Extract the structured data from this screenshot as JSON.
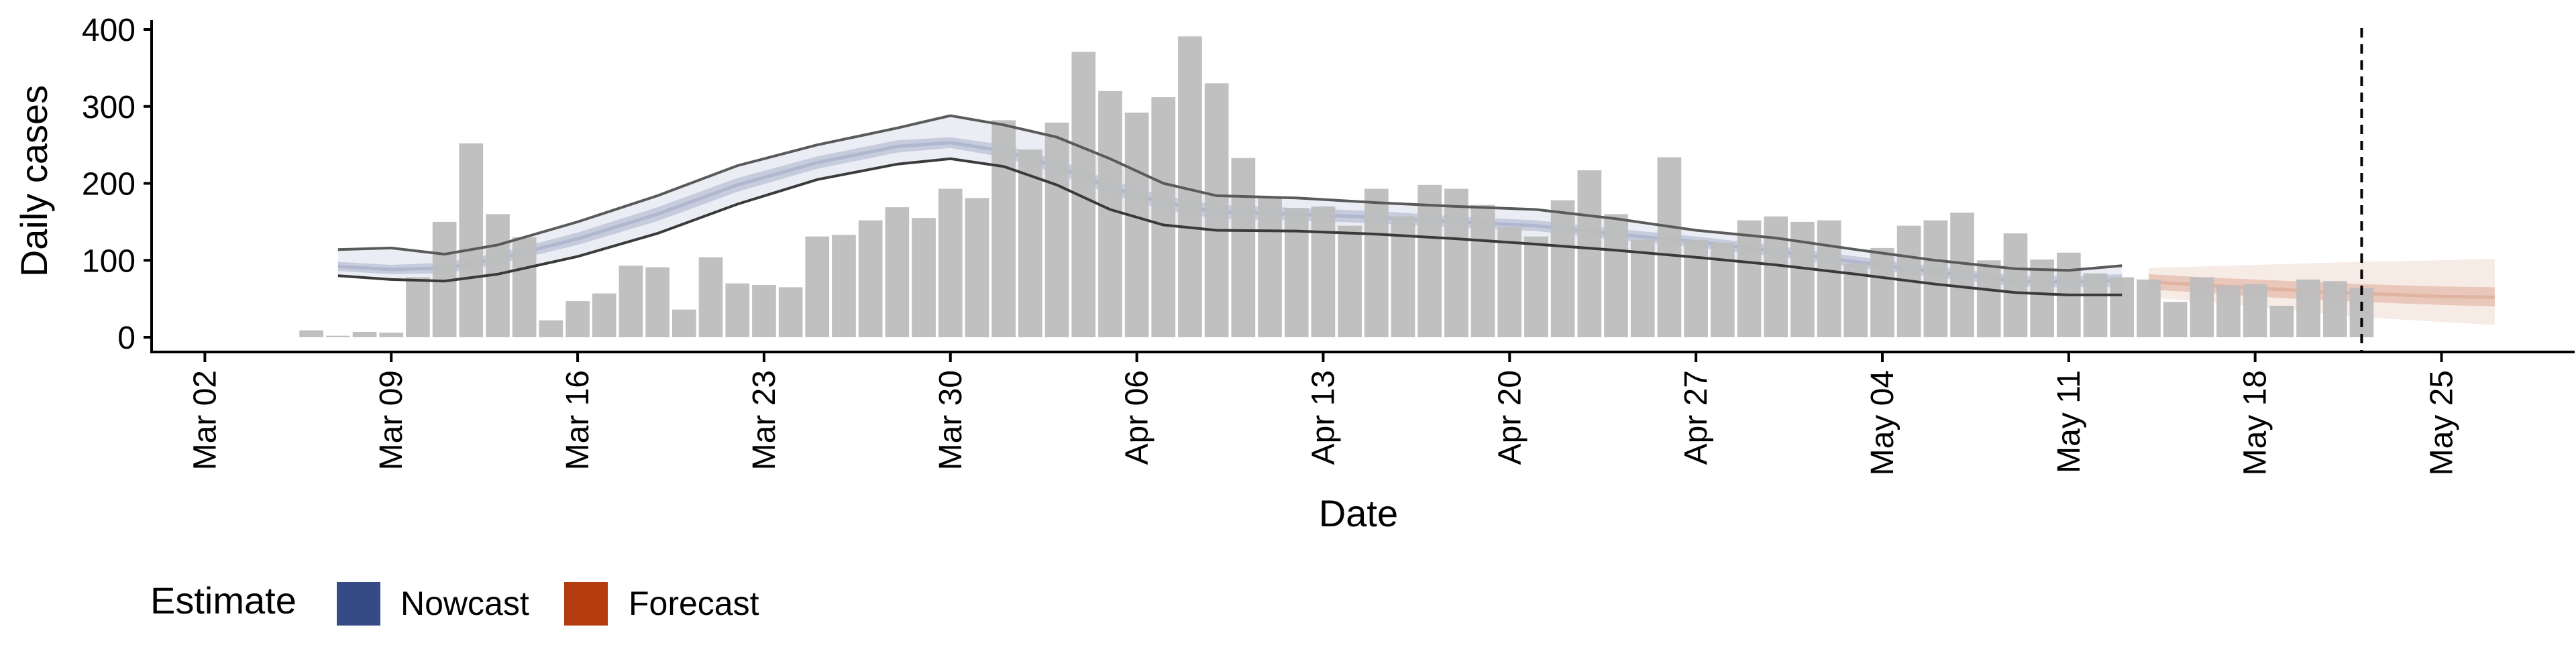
{
  "chart_data": {
    "type": "bar",
    "xlabel": "Date",
    "ylabel": "Daily cases",
    "ylim": [
      0,
      400
    ],
    "yticks": [
      0,
      100,
      200,
      300,
      400
    ],
    "x_axis": {
      "type": "date",
      "range": [
        "2020-02-29",
        "2020-05-30"
      ],
      "ticks": [
        {
          "date": "2020-03-02",
          "label": "Mar 02"
        },
        {
          "date": "2020-03-09",
          "label": "Mar 09"
        },
        {
          "date": "2020-03-16",
          "label": "Mar 16"
        },
        {
          "date": "2020-03-23",
          "label": "Mar 23"
        },
        {
          "date": "2020-03-30",
          "label": "Mar 30"
        },
        {
          "date": "2020-04-06",
          "label": "Apr 06"
        },
        {
          "date": "2020-04-13",
          "label": "Apr 13"
        },
        {
          "date": "2020-04-20",
          "label": "Apr 20"
        },
        {
          "date": "2020-04-27",
          "label": "Apr 27"
        },
        {
          "date": "2020-05-04",
          "label": "May 04"
        },
        {
          "date": "2020-05-11",
          "label": "May 11"
        },
        {
          "date": "2020-05-18",
          "label": "May 18"
        },
        {
          "date": "2020-05-25",
          "label": "May 25"
        }
      ]
    },
    "grid": false,
    "legend": {
      "position": "bottom-left",
      "title": "Estimate",
      "entries": [
        {
          "label": "Nowcast",
          "color": "#354A87"
        },
        {
          "label": "Forecast",
          "color": "#B33B0E"
        }
      ]
    },
    "reference_line": {
      "date": "2020-05-22",
      "style": "dashed"
    },
    "bars": {
      "name": "Daily cases",
      "color": "#BDBDBD",
      "data": [
        [
          "2020-03-06",
          9
        ],
        [
          "2020-03-07",
          2
        ],
        [
          "2020-03-08",
          7
        ],
        [
          "2020-03-09",
          6
        ],
        [
          "2020-03-10",
          78
        ],
        [
          "2020-03-11",
          150
        ],
        [
          "2020-03-12",
          252
        ],
        [
          "2020-03-13",
          160
        ],
        [
          "2020-03-14",
          130
        ],
        [
          "2020-03-15",
          22
        ],
        [
          "2020-03-16",
          47
        ],
        [
          "2020-03-17",
          57
        ],
        [
          "2020-03-18",
          93
        ],
        [
          "2020-03-19",
          91
        ],
        [
          "2020-03-20",
          36
        ],
        [
          "2020-03-21",
          104
        ],
        [
          "2020-03-22",
          70
        ],
        [
          "2020-03-23",
          68
        ],
        [
          "2020-03-24",
          65
        ],
        [
          "2020-03-25",
          131
        ],
        [
          "2020-03-26",
          133
        ],
        [
          "2020-03-27",
          152
        ],
        [
          "2020-03-28",
          169
        ],
        [
          "2020-03-29",
          155
        ],
        [
          "2020-03-30",
          193
        ],
        [
          "2020-03-31",
          181
        ],
        [
          "2020-04-01",
          282
        ],
        [
          "2020-04-02",
          244
        ],
        [
          "2020-04-03",
          279
        ],
        [
          "2020-04-04",
          371
        ],
        [
          "2020-04-05",
          320
        ],
        [
          "2020-04-06",
          292
        ],
        [
          "2020-04-07",
          312
        ],
        [
          "2020-04-08",
          391
        ],
        [
          "2020-04-09",
          330
        ],
        [
          "2020-04-10",
          233
        ],
        [
          "2020-04-11",
          183
        ],
        [
          "2020-04-12",
          168
        ],
        [
          "2020-04-13",
          170
        ],
        [
          "2020-04-14",
          145
        ],
        [
          "2020-04-15",
          193
        ],
        [
          "2020-04-16",
          157
        ],
        [
          "2020-04-17",
          198
        ],
        [
          "2020-04-18",
          193
        ],
        [
          "2020-04-19",
          172
        ],
        [
          "2020-04-20",
          143
        ],
        [
          "2020-04-21",
          131
        ],
        [
          "2020-04-22",
          178
        ],
        [
          "2020-04-23",
          217
        ],
        [
          "2020-04-24",
          160
        ],
        [
          "2020-04-25",
          127
        ],
        [
          "2020-04-26",
          234
        ],
        [
          "2020-04-27",
          126
        ],
        [
          "2020-04-28",
          123
        ],
        [
          "2020-04-29",
          152
        ],
        [
          "2020-04-30",
          157
        ],
        [
          "2020-05-01",
          150
        ],
        [
          "2020-05-02",
          152
        ],
        [
          "2020-05-03",
          96
        ],
        [
          "2020-05-04",
          116
        ],
        [
          "2020-05-05",
          145
        ],
        [
          "2020-05-06",
          152
        ],
        [
          "2020-05-07",
          162
        ],
        [
          "2020-05-08",
          100
        ],
        [
          "2020-05-09",
          135
        ],
        [
          "2020-05-10",
          101
        ],
        [
          "2020-05-11",
          110
        ],
        [
          "2020-05-12",
          83
        ],
        [
          "2020-05-13",
          78
        ],
        [
          "2020-05-14",
          75
        ],
        [
          "2020-05-15",
          46
        ],
        [
          "2020-05-16",
          78
        ],
        [
          "2020-05-17",
          67
        ],
        [
          "2020-05-18",
          69
        ],
        [
          "2020-05-19",
          41
        ],
        [
          "2020-05-20",
          75
        ],
        [
          "2020-05-21",
          73
        ],
        [
          "2020-05-22",
          64
        ]
      ]
    },
    "series": [
      {
        "name": "Nowcast",
        "kind": "ribbon",
        "color": "#354A87",
        "dates": [
          "2020-03-07",
          "2020-03-09",
          "2020-03-11",
          "2020-03-13",
          "2020-03-16",
          "2020-03-19",
          "2020-03-22",
          "2020-03-25",
          "2020-03-28",
          "2020-03-30",
          "2020-04-01",
          "2020-04-03",
          "2020-04-05",
          "2020-04-07",
          "2020-04-09",
          "2020-04-12",
          "2020-04-15",
          "2020-04-18",
          "2020-04-21",
          "2020-04-24",
          "2020-04-27",
          "2020-04-30",
          "2020-05-03",
          "2020-05-06",
          "2020-05-09",
          "2020-05-11",
          "2020-05-13"
        ],
        "median": [
          92,
          88,
          90,
          102,
          128,
          160,
          198,
          227,
          248,
          253,
          242,
          222,
          195,
          175,
          163,
          160,
          156,
          150,
          145,
          134,
          124,
          112,
          98,
          85,
          73,
          72,
          74
        ],
        "inner_lower": [
          86,
          82,
          83,
          95,
          120,
          151,
          189,
          219,
          240,
          246,
          234,
          213,
          186,
          166,
          154,
          152,
          148,
          143,
          138,
          127,
          117,
          105,
          91,
          78,
          66,
          65,
          66
        ],
        "inner_upper": [
          98,
          94,
          97,
          109,
          136,
          169,
          207,
          235,
          256,
          260,
          250,
          231,
          204,
          184,
          172,
          168,
          164,
          157,
          152,
          141,
          131,
          119,
          105,
          92,
          80,
          79,
          82
        ],
        "outer_lower": [
          80,
          75,
          73,
          82,
          105,
          135,
          173,
          205,
          225,
          232,
          222,
          198,
          166,
          146,
          139,
          138,
          134,
          128,
          121,
          113,
          104,
          94,
          82,
          69,
          58,
          55,
          55
        ],
        "outer_upper": [
          114,
          116,
          108,
          120,
          150,
          184,
          223,
          250,
          272,
          288,
          276,
          260,
          232,
          200,
          184,
          181,
          175,
          170,
          166,
          154,
          139,
          129,
          114,
          100,
          89,
          87,
          93
        ]
      },
      {
        "name": "Forecast",
        "kind": "ribbon",
        "color": "#B33B0E",
        "dates": [
          "2020-05-14",
          "2020-05-16",
          "2020-05-18",
          "2020-05-20",
          "2020-05-22",
          "2020-05-25",
          "2020-05-27"
        ],
        "median": [
          72,
          68,
          64,
          60,
          57,
          53,
          52
        ],
        "inner_lower": [
          62,
          58,
          53,
          49,
          46,
          42,
          40
        ],
        "inner_upper": [
          82,
          78,
          75,
          72,
          69,
          66,
          65
        ],
        "outer_lower": [
          52,
          46,
          40,
          33,
          26,
          20,
          16
        ],
        "outer_upper": [
          90,
          92,
          94,
          96,
          98,
          100,
          102
        ]
      }
    ]
  }
}
